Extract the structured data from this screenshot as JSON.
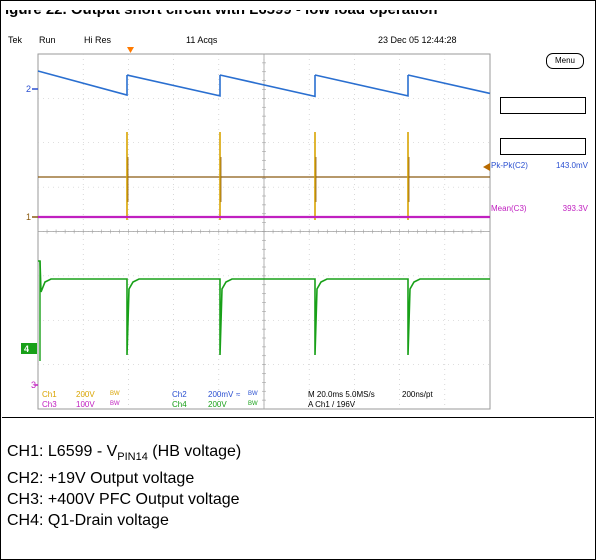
{
  "header": {
    "caption": "igure 22.  Output short circuit with L6599 - low load operation"
  },
  "scope": {
    "status": {
      "brand": "Tek",
      "mode": "Run",
      "acq_mode": "Hi Res",
      "acqs": "11 Acqs",
      "datetime": "23 Dec 05 12:44:28"
    },
    "menu_label": "Menu",
    "measurements": [
      {
        "label": "Pk-Pk(C2)",
        "value": "143.0mV",
        "color": "#2a4fd0"
      },
      {
        "label": "Mean(C3)",
        "value": "393.3V",
        "color": "#c020c0"
      }
    ],
    "markers": {
      "ch2": "2",
      "ch1": "1",
      "ch4": "4",
      "ch3": "3"
    },
    "bottom": {
      "ch1_label": "Ch1",
      "ch1_scale": "200V",
      "ch3_label": "Ch3",
      "ch3_scale": "100V",
      "bw1": "BW",
      "bw3": "BW",
      "ch2_label": "Ch2",
      "ch2_scale": "200mV",
      "ch4_label": "Ch4",
      "ch4_scale": "200V",
      "bw2": "BW",
      "bw4": "BW",
      "coupling": "≈",
      "timebase": "M 20.0ms 5.0MS/s",
      "pt": "200ns/pt",
      "trigger": "A  Ch1  /  196V"
    },
    "colors": {
      "ch1": "#d9a400",
      "ch2": "#2a6fd0",
      "ch3": "#c020c0",
      "ch4": "#18a018",
      "ch1_dark": "#8a5a10"
    }
  },
  "legend": {
    "line1_prefix": "CH1: L6599 - V",
    "line1_sub": "PIN14",
    "line1_suffix": " (HB voltage)",
    "line2": "CH2: +19V Output voltage",
    "line3": "CH3: +400V PFC Output voltage",
    "line4": "CH4: Q1-Drain voltage"
  }
}
